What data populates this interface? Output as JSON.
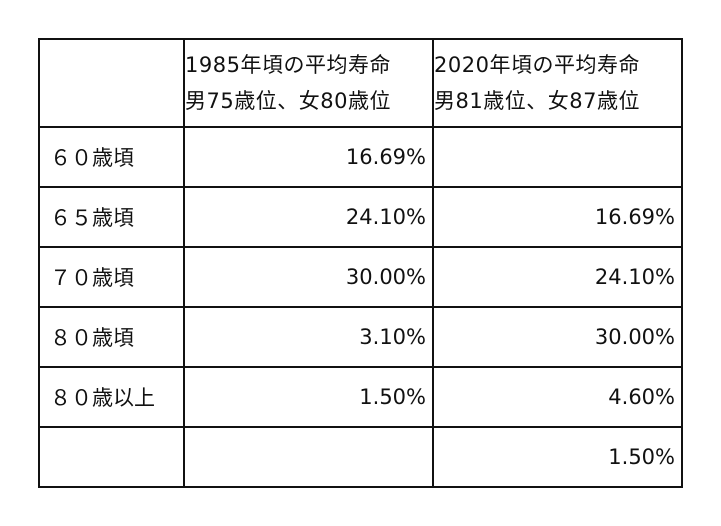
{
  "table": {
    "header": {
      "corner": "",
      "col1": {
        "line1": "1985年頃の平均寿命",
        "line2": "男75歳位、女80歳位"
      },
      "col2": {
        "line1": "2020年頃の平均寿命",
        "line2": "男81歳位、女87歳位"
      }
    },
    "rows": [
      {
        "label": "６０歳頃",
        "v1985": "16.69%",
        "v2020": ""
      },
      {
        "label": "６５歳頃",
        "v1985": "24.10%",
        "v2020": "16.69%"
      },
      {
        "label": "７０歳頃",
        "v1985": "30.00%",
        "v2020": "24.10%"
      },
      {
        "label": "８０歳頃",
        "v1985": "3.10%",
        "v2020": "30.00%"
      },
      {
        "label": "８０歳以上",
        "v1985": "1.50%",
        "v2020": "4.60%"
      },
      {
        "label": "",
        "v1985": "",
        "v2020": "1.50%"
      }
    ]
  }
}
